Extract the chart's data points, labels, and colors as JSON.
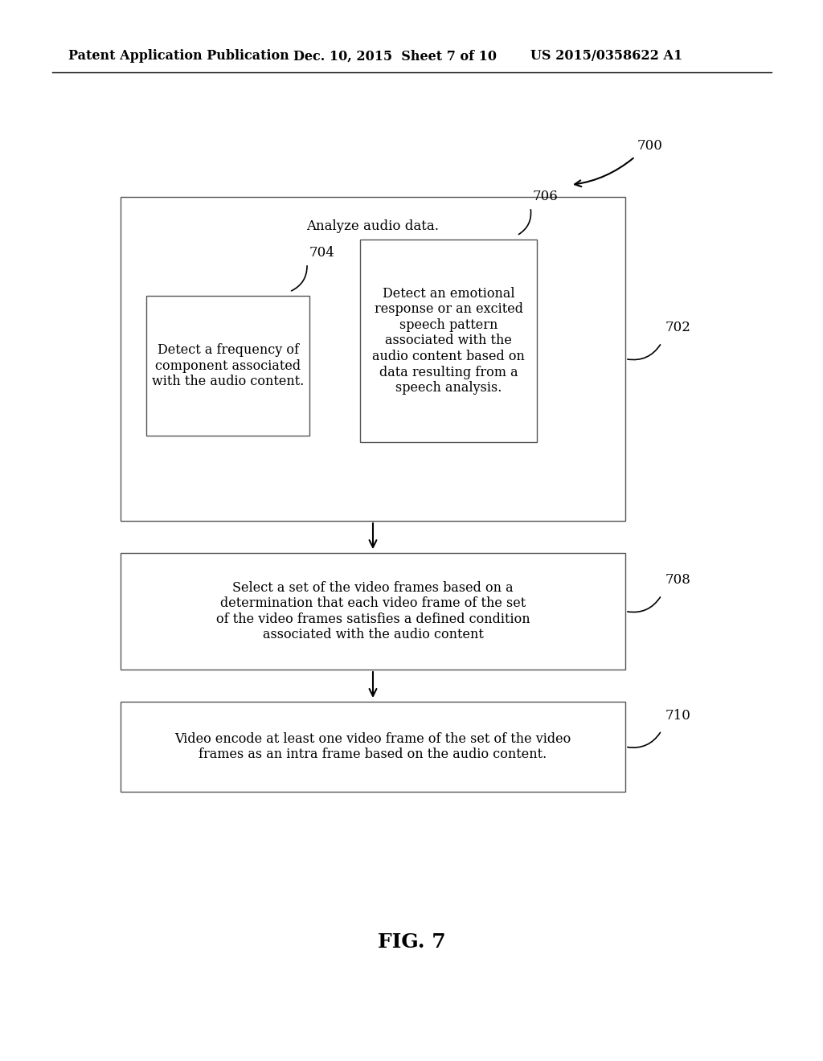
{
  "bg_color": "#ffffff",
  "header_left": "Patent Application Publication",
  "header_center": "Dec. 10, 2015  Sheet 7 of 10",
  "header_right": "US 2015/0358622 A1",
  "fig_label": "FIG. 7",
  "label_700": "700",
  "label_702": "702",
  "label_704": "704",
  "label_706": "706",
  "label_708": "708",
  "label_710": "710",
  "text_702": "Analyze audio data.",
  "text_704": "Detect a frequency of\ncomponent associated\nwith the audio content.",
  "text_706": "Detect an emotional\nresponse or an excited\nspeech pattern\nassociated with the\naudio content based on\ndata resulting from a\nspeech analysis.",
  "text_708": "Select a set of the video frames based on a\ndetermination that each video frame of the set\nof the video frames satisfies a defined condition\nassociated with the audio content",
  "text_710": "Video encode at least one video frame of the set of the video\nframes as an intra frame based on the audio content.",
  "font_family": "DejaVu Serif",
  "header_fontsize": 11.5,
  "body_fontsize": 12,
  "label_fontsize": 12
}
